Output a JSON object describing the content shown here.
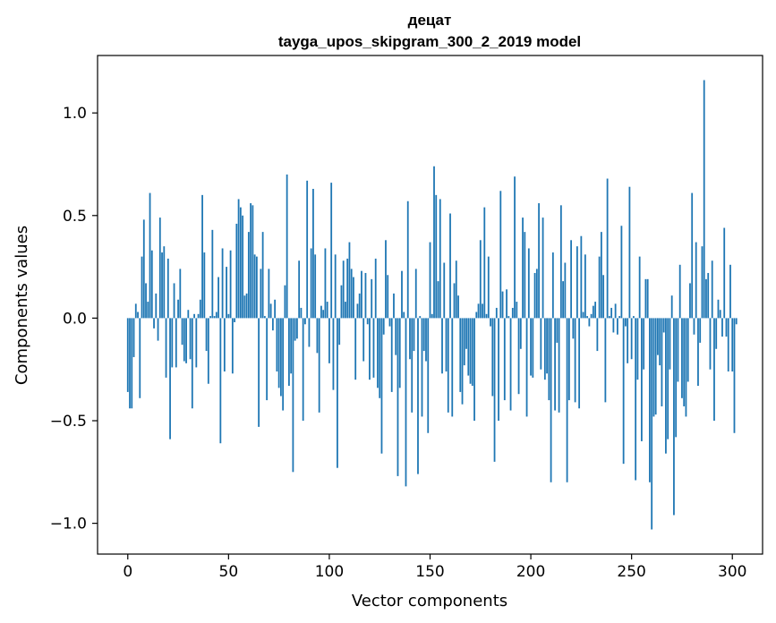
{
  "chart_data": {
    "type": "bar",
    "title": "децат",
    "subtitle": "tayga_upos_skipgram_300_2_2019 model",
    "xlabel": "Vector components",
    "ylabel": "Components values",
    "xlim": [
      -15,
      315
    ],
    "ylim": [
      -1.15,
      1.28
    ],
    "xticks": [
      0,
      50,
      100,
      150,
      200,
      250,
      300
    ],
    "xtick_labels": [
      "0",
      "50",
      "100",
      "150",
      "200",
      "250",
      "300"
    ],
    "yticks": [
      -1.0,
      -0.5,
      0.0,
      0.5,
      1.0
    ],
    "ytick_labels": [
      "−1.0",
      "−0.5",
      "0.0",
      "0.5",
      "1.0"
    ],
    "color": "#1f77b4",
    "grid": false,
    "values": [
      -0.36,
      -0.44,
      -0.44,
      -0.19,
      0.07,
      0.03,
      -0.39,
      0.3,
      0.48,
      0.17,
      0.08,
      0.61,
      0.33,
      -0.05,
      0.12,
      -0.11,
      0.49,
      0.32,
      0.35,
      -0.29,
      0.29,
      -0.59,
      -0.24,
      0.17,
      -0.24,
      0.09,
      0.24,
      -0.13,
      -0.21,
      -0.22,
      0.04,
      -0.2,
      -0.44,
      0.02,
      -0.24,
      0.02,
      0.09,
      0.6,
      0.32,
      -0.16,
      -0.32,
      0.01,
      0.43,
      0.01,
      0.03,
      0.2,
      -0.61,
      0.34,
      -0.26,
      0.25,
      0.02,
      0.33,
      -0.27,
      -0.02,
      0.46,
      0.58,
      0.54,
      0.5,
      0.11,
      0.12,
      0.42,
      0.56,
      0.55,
      0.31,
      0.3,
      -0.53,
      0.24,
      0.42,
      0.01,
      -0.4,
      0.24,
      0.07,
      -0.06,
      0.09,
      -0.26,
      -0.34,
      -0.38,
      -0.45,
      0.16,
      0.7,
      -0.33,
      -0.27,
      -0.75,
      -0.11,
      -0.1,
      0.28,
      0.05,
      -0.5,
      -0.03,
      0.67,
      -0.14,
      0.34,
      0.63,
      0.31,
      -0.17,
      -0.46,
      0.06,
      0.04,
      0.34,
      0.08,
      -0.22,
      0.66,
      -0.35,
      0.31,
      -0.73,
      -0.13,
      0.16,
      0.28,
      0.08,
      0.29,
      0.37,
      0.24,
      0.2,
      -0.3,
      0.07,
      0.12,
      0.23,
      -0.21,
      0.22,
      -0.03,
      -0.3,
      0.19,
      -0.29,
      0.29,
      -0.34,
      -0.39,
      -0.66,
      -0.08,
      0.38,
      0.21,
      -0.04,
      -0.36,
      0.12,
      -0.18,
      -0.77,
      -0.34,
      0.23,
      0.03,
      -0.82,
      0.57,
      -0.2,
      -0.46,
      -0.16,
      0.24,
      -0.76,
      0.01,
      -0.48,
      -0.16,
      -0.21,
      -0.56,
      0.37,
      0.02,
      0.74,
      0.6,
      0.18,
      0.58,
      -0.27,
      0.27,
      -0.26,
      -0.46,
      0.51,
      -0.48,
      0.17,
      0.28,
      0.11,
      -0.36,
      -0.42,
      -0.23,
      -0.15,
      -0.28,
      -0.32,
      -0.33,
      -0.5,
      0.03,
      0.07,
      0.38,
      0.07,
      0.54,
      0.02,
      0.3,
      -0.04,
      -0.38,
      -0.7,
      0.05,
      -0.5,
      0.62,
      0.13,
      -0.4,
      0.14,
      0.01,
      -0.45,
      0.05,
      0.69,
      0.08,
      -0.37,
      -0.15,
      0.49,
      0.42,
      -0.48,
      0.34,
      -0.28,
      -0.29,
      0.22,
      0.24,
      0.56,
      -0.25,
      0.49,
      -0.3,
      -0.27,
      -0.4,
      -0.8,
      0.32,
      -0.45,
      -0.12,
      -0.46,
      0.55,
      0.18,
      0.27,
      -0.8,
      -0.4,
      0.38,
      -0.1,
      -0.41,
      0.35,
      -0.44,
      0.4,
      0.03,
      0.31,
      0.01,
      -0.04,
      0.02,
      0.06,
      0.08,
      -0.16,
      0.3,
      0.42,
      0.21,
      -0.41,
      0.68,
      0.01,
      0.05,
      -0.07,
      0.07,
      -0.08,
      0.01,
      0.45,
      -0.71,
      -0.04,
      -0.22,
      0.64,
      -0.2,
      0.01,
      -0.79,
      -0.3,
      0.3,
      -0.6,
      -0.25,
      0.19,
      0.19,
      -0.8,
      -1.03,
      -0.48,
      -0.47,
      -0.18,
      -0.23,
      -0.43,
      -0.07,
      -0.66,
      -0.59,
      -0.25,
      0.11,
      -0.96,
      -0.58,
      -0.31,
      0.26,
      -0.39,
      -0.43,
      -0.48,
      -0.31,
      0.17,
      0.61,
      -0.08,
      0.37,
      -0.33,
      -0.12,
      0.35,
      1.16,
      0.19,
      0.22,
      -0.25,
      0.28,
      -0.5,
      -0.15,
      0.09,
      0.04,
      -0.09,
      0.44,
      -0.09,
      -0.26,
      0.26,
      -0.26,
      -0.56,
      -0.03
    ]
  }
}
